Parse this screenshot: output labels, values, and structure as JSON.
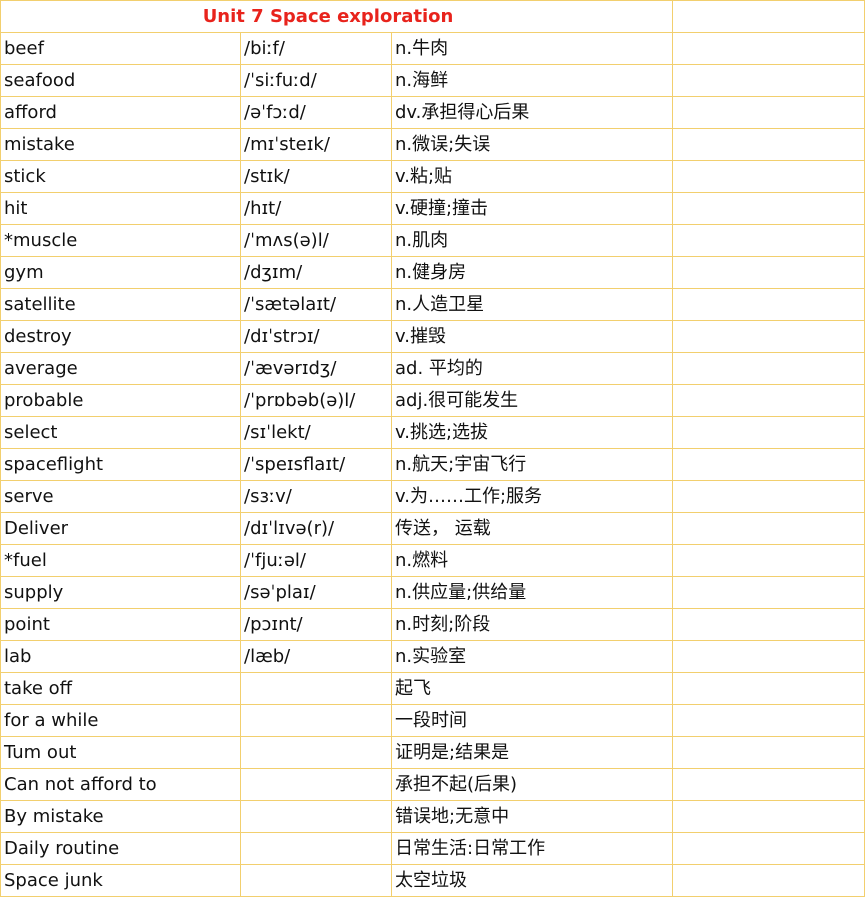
{
  "title": "Unit 7 Space exploration",
  "colors": {
    "title": "#e8231c",
    "grid": "#f2cf6e"
  },
  "rows": [
    {
      "word": "beef",
      "ipa": "/biːf/",
      "meaning": "n.牛肉"
    },
    {
      "word": "seafood",
      "ipa": "/ˈsiːfuːd/",
      "meaning": "n.海鲜"
    },
    {
      "word": "afford",
      "ipa": "/əˈfɔːd/",
      "meaning": "dv.承担得心后果"
    },
    {
      "word": "mistake",
      "ipa": "/mɪˈsteɪk/",
      "meaning": "n.微误;失误"
    },
    {
      "word": "stick",
      "ipa": "/stɪk/",
      "meaning": "v.粘;贴"
    },
    {
      "word": "hit",
      "ipa": "/hɪt/",
      "meaning": "v.硬撞;撞击"
    },
    {
      "word": "*muscle",
      "ipa": "/ˈmʌs(ə)l/",
      "meaning": "n.肌肉"
    },
    {
      "word": "gym",
      "ipa": "/dʒɪm/",
      "meaning": "n.健身房"
    },
    {
      "word": "satellite",
      "ipa": "/ˈsætəlaɪt/",
      "meaning": "n.人造卫星"
    },
    {
      "word": "destroy",
      "ipa": "/dɪˈstrɔɪ/",
      "meaning": "v.摧毁"
    },
    {
      "word": "average",
      "ipa": "/ˈævərɪdʒ/",
      "meaning": "ad. 平均的"
    },
    {
      "word": "probable",
      "ipa": "/ˈprɒbəb(ə)l/",
      "meaning": "adj.很可能发生"
    },
    {
      "word": "select",
      "ipa": "/sɪˈlekt/",
      "meaning": "v.挑选;选拔"
    },
    {
      "word": "spaceflight",
      "ipa": "/ˈspeɪsflaɪt/",
      "meaning": "n.航天;宇宙飞行"
    },
    {
      "word": "serve",
      "ipa": "/sɜːv/",
      "meaning": "v.为……工作;服务"
    },
    {
      "word": "Deliver",
      "ipa": "/dɪˈlɪvə(r)/",
      "meaning": "传送， 运载"
    },
    {
      "word": "*fuel",
      "ipa": "/ˈfjuːəl/",
      "meaning": "n.燃料"
    },
    {
      "word": "supply",
      "ipa": "/səˈplaɪ/",
      "meaning": "n.供应量;供给量"
    },
    {
      "word": "point",
      "ipa": "/pɔɪnt/",
      "meaning": "n.时刻;阶段"
    },
    {
      "word": "lab",
      "ipa": "/læb/",
      "meaning": "n.实验室"
    },
    {
      "word": "take off",
      "ipa": "",
      "meaning": "起飞"
    },
    {
      "word": "for a while",
      "ipa": "",
      "meaning": "一段时间"
    },
    {
      "word": "Tum out",
      "ipa": "",
      "meaning": "证明是;结果是"
    },
    {
      "word": "Can not afford to",
      "ipa": "",
      "meaning": "承担不起(后果)"
    },
    {
      "word": "By mistake",
      "ipa": "",
      "meaning": "错误地;无意中"
    },
    {
      "word": "Daily routine",
      "ipa": "",
      "meaning": "日常生活:日常工作"
    },
    {
      "word": "Space junk",
      "ipa": "",
      "meaning": "太空垃圾"
    }
  ]
}
